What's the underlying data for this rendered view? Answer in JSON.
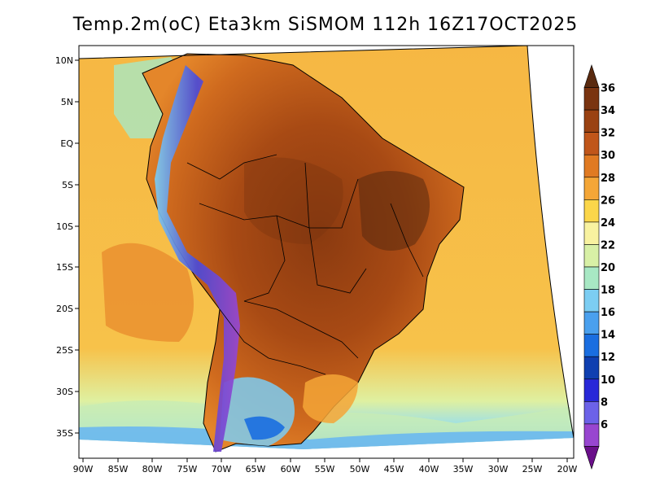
{
  "title": "Temp.2m(oC) Eta3km SiSMOM 112h 16Z17OCT2025",
  "map": {
    "latitude_labels": [
      "10N",
      "5N",
      "EQ",
      "5S",
      "10S",
      "15S",
      "20S",
      "25S",
      "30S",
      "35S"
    ],
    "longitude_labels": [
      "90W",
      "85W",
      "80W",
      "75W",
      "70W",
      "65W",
      "60W",
      "55W",
      "50W",
      "45W",
      "40W",
      "35W",
      "30W",
      "25W",
      "20W"
    ],
    "lat_range": [
      -38,
      11
    ],
    "lon_range": [
      -90,
      -20
    ]
  },
  "colorbar": {
    "labels": [
      "36",
      "34",
      "32",
      "30",
      "28",
      "26",
      "24",
      "22",
      "20",
      "18",
      "16",
      "14",
      "12",
      "10",
      "8",
      "6"
    ],
    "colors": [
      "#5a2a0f",
      "#7a3410",
      "#9a4212",
      "#c0561a",
      "#e07a22",
      "#f4a637",
      "#fbd64a",
      "#f8f2a0",
      "#d8f0a6",
      "#a8e8c4",
      "#7ccdf2",
      "#4aa0ee",
      "#1a6ee0",
      "#0f3fb0",
      "#2828d8",
      "#6c62e8",
      "#9846d0",
      "#6a0f8a"
    ]
  }
}
